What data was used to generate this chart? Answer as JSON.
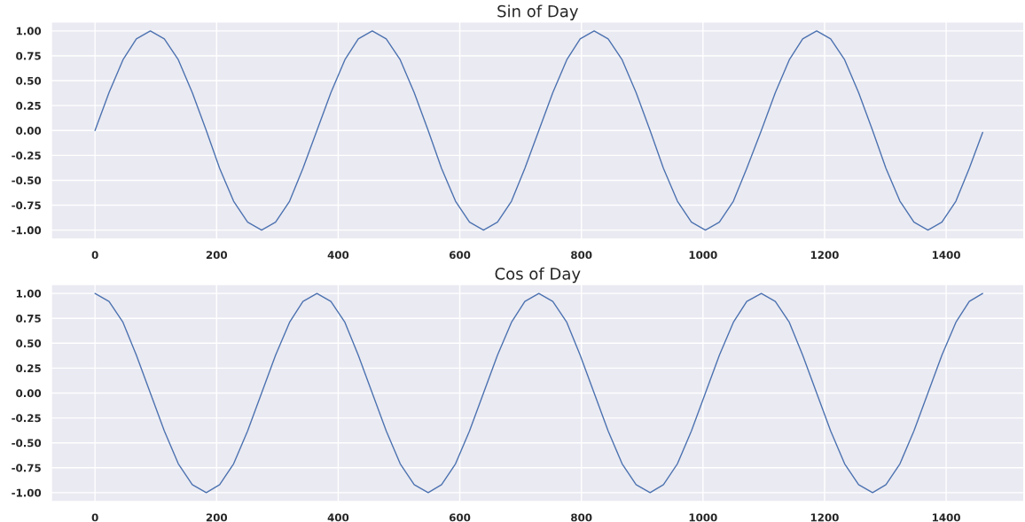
{
  "chart_data": [
    {
      "type": "line",
      "title": "Sin of Day",
      "x": [
        0,
        23,
        46,
        68,
        91,
        114,
        137,
        160,
        183,
        205,
        228,
        251,
        274,
        297,
        320,
        342,
        365,
        388,
        411,
        433,
        456,
        479,
        502,
        525,
        548,
        570,
        593,
        616,
        639,
        662,
        685,
        707,
        730,
        753,
        776,
        798,
        821,
        844,
        867,
        890,
        913,
        935,
        958,
        981,
        1004,
        1027,
        1050,
        1072,
        1096,
        1119,
        1142,
        1164,
        1187,
        1210,
        1233,
        1256,
        1279,
        1301,
        1324,
        1347,
        1370,
        1393,
        1416,
        1438,
        1460
      ],
      "series": [
        {
          "color": "#4c72b0",
          "values": [
            0,
            0.38,
            0.71,
            0.92,
            1,
            0.92,
            0.71,
            0.38,
            0,
            -0.38,
            -0.71,
            -0.92,
            -1,
            -0.92,
            -0.71,
            -0.38,
            0,
            0.38,
            0.71,
            0.92,
            1,
            0.92,
            0.71,
            0.38,
            0,
            -0.38,
            -0.71,
            -0.92,
            -1,
            -0.92,
            -0.71,
            -0.38,
            0,
            0.38,
            0.71,
            0.92,
            1,
            0.92,
            0.71,
            0.38,
            0,
            -0.38,
            -0.71,
            -0.92,
            -1,
            -0.92,
            -0.71,
            -0.38,
            0,
            0.38,
            0.71,
            0.92,
            1,
            0.92,
            0.71,
            0.38,
            0,
            -0.38,
            -0.71,
            -0.92,
            -1,
            -0.92,
            -0.71,
            -0.38,
            -0.02
          ]
        }
      ],
      "xlim": [
        -72,
        1528
      ],
      "ylim": [
        -1.09,
        1.09
      ],
      "xticks": [
        0,
        200,
        400,
        600,
        800,
        1000,
        1200,
        1400
      ],
      "yticks": [
        {
          "value": 1,
          "label": "1.00"
        },
        {
          "value": 0.75,
          "label": "0.75"
        },
        {
          "value": 0.5,
          "label": "0.50"
        },
        {
          "value": 0.25,
          "label": "0.25"
        },
        {
          "value": 0,
          "label": "0.00"
        },
        {
          "value": -0.25,
          "label": "-0.25"
        },
        {
          "value": -0.5,
          "label": "-0.50"
        },
        {
          "value": -0.75,
          "label": "-0.75"
        },
        {
          "value": -1,
          "label": "-1.00"
        }
      ],
      "grid": true,
      "marker": "none",
      "line_style": "solid"
    },
    {
      "type": "line",
      "title": "Cos of Day",
      "x": [
        0,
        23,
        46,
        68,
        91,
        114,
        137,
        160,
        183,
        205,
        228,
        251,
        274,
        297,
        320,
        342,
        365,
        388,
        411,
        433,
        456,
        479,
        502,
        525,
        548,
        570,
        593,
        616,
        639,
        662,
        685,
        707,
        730,
        753,
        776,
        798,
        821,
        844,
        867,
        890,
        913,
        935,
        958,
        981,
        1004,
        1027,
        1050,
        1072,
        1096,
        1119,
        1142,
        1164,
        1187,
        1210,
        1233,
        1256,
        1279,
        1301,
        1324,
        1347,
        1370,
        1393,
        1416,
        1438,
        1460
      ],
      "series": [
        {
          "color": "#4c72b0",
          "values": [
            1,
            0.92,
            0.71,
            0.38,
            0,
            -0.38,
            -0.71,
            -0.92,
            -1,
            -0.92,
            -0.71,
            -0.38,
            0,
            0.38,
            0.71,
            0.92,
            1,
            0.92,
            0.71,
            0.38,
            0,
            -0.38,
            -0.71,
            -0.92,
            -1,
            -0.92,
            -0.71,
            -0.38,
            0,
            0.38,
            0.71,
            0.92,
            1,
            0.92,
            0.71,
            0.38,
            0,
            -0.38,
            -0.71,
            -0.92,
            -1,
            -0.92,
            -0.71,
            -0.38,
            0,
            0.38,
            0.71,
            0.92,
            1,
            0.92,
            0.71,
            0.38,
            0,
            -0.38,
            -0.71,
            -0.92,
            -1,
            -0.92,
            -0.71,
            -0.38,
            0,
            0.38,
            0.71,
            0.92,
            1
          ]
        }
      ],
      "xlim": [
        -72,
        1528
      ],
      "ylim": [
        -1.09,
        1.09
      ],
      "xticks": [
        0,
        200,
        400,
        600,
        800,
        1000,
        1200,
        1400
      ],
      "yticks": [
        {
          "value": 1,
          "label": "1.00"
        },
        {
          "value": 0.75,
          "label": "0.75"
        },
        {
          "value": 0.5,
          "label": "0.50"
        },
        {
          "value": 0.25,
          "label": "0.25"
        },
        {
          "value": 0,
          "label": "0.00"
        },
        {
          "value": -0.25,
          "label": "-0.25"
        },
        {
          "value": -0.5,
          "label": "-0.50"
        },
        {
          "value": -0.75,
          "label": "-0.75"
        },
        {
          "value": -1,
          "label": "-1.00"
        }
      ],
      "grid": true,
      "marker": "none",
      "line_style": "solid"
    }
  ]
}
